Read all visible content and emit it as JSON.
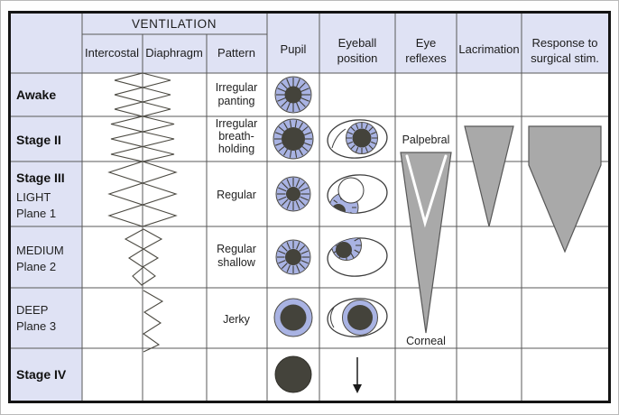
{
  "figure": {
    "title": "Stages of anaesthesia table"
  },
  "header": {
    "ventilation": "VENTILATION",
    "intercostal": "Intercostal",
    "diaphragm": "Diaphragm",
    "pattern": "Pattern",
    "pupil": "Pupil",
    "eyeball": [
      "Eyeball",
      "position"
    ],
    "reflexes": [
      "Eye",
      "reflexes"
    ],
    "lacrimation": "Lacrimation",
    "response": [
      "Response to",
      "surgical stim."
    ]
  },
  "rows": {
    "awake": {
      "label": "Awake",
      "pattern": [
        "Irregular",
        "panting"
      ]
    },
    "stage2": {
      "label": "Stage II",
      "pattern": [
        "Irregular",
        "breath-",
        "holding"
      ]
    },
    "plane1": {
      "stage": "Stage III",
      "depth": "LIGHT",
      "plane": "Plane 1",
      "pattern": [
        "Regular"
      ]
    },
    "plane2": {
      "depth": "MEDIUM",
      "plane": "Plane 2",
      "pattern": [
        "Regular",
        "shallow"
      ]
    },
    "plane3": {
      "depth": "DEEP",
      "plane": "Plane 3",
      "pattern": [
        "Jerky"
      ]
    },
    "stage4": {
      "label": "Stage IV"
    }
  },
  "reflex_labels": {
    "palpebral": "Palpebral",
    "corneal": "Corneal"
  },
  "colors": {
    "header_bg": "#dfe2f4",
    "grid": "#595959",
    "frame": "#141414",
    "shape_gray": "#a9a9a9",
    "iris": "#a9b3e3",
    "pupil": "#44433b"
  }
}
